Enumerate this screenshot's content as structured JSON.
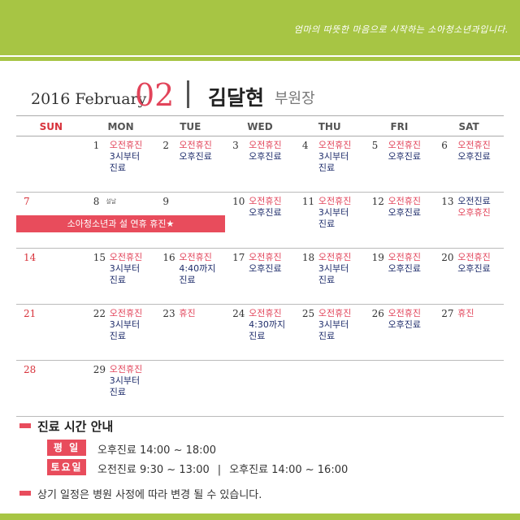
{
  "header": {
    "slogan": "엄마의 따뜻한 마음으로 시작하는 소아청소년과입니다."
  },
  "title": {
    "year_month": "2016 February",
    "month_number": "02",
    "doctor_name": "김달현",
    "doctor_role": "부원장"
  },
  "calendar": {
    "day_names": [
      "SUN",
      "MON",
      "TUE",
      "WED",
      "THU",
      "FRI",
      "SAT"
    ],
    "weeks": [
      [
        {
          "date": "",
          "lines": []
        },
        {
          "date": "1",
          "lines": [
            {
              "text": "오전휴진",
              "color": "red"
            },
            {
              "text": "3시부터",
              "color": "navy"
            },
            {
              "text": "진료",
              "color": "navy"
            }
          ]
        },
        {
          "date": "2",
          "lines": [
            {
              "text": "오전휴진",
              "color": "red"
            },
            {
              "text": "오후진료",
              "color": "navy"
            }
          ]
        },
        {
          "date": "3",
          "lines": [
            {
              "text": "오전휴진",
              "color": "red"
            },
            {
              "text": "오후진료",
              "color": "navy"
            }
          ]
        },
        {
          "date": "4",
          "lines": [
            {
              "text": "오전휴진",
              "color": "red"
            },
            {
              "text": "3시부터",
              "color": "navy"
            },
            {
              "text": "진료",
              "color": "navy"
            }
          ]
        },
        {
          "date": "5",
          "lines": [
            {
              "text": "오전휴진",
              "color": "red"
            },
            {
              "text": "오후진료",
              "color": "navy"
            }
          ]
        },
        {
          "date": "6",
          "lines": [
            {
              "text": "오전휴진",
              "color": "red"
            },
            {
              "text": "오후진료",
              "color": "navy"
            }
          ]
        }
      ],
      [
        {
          "date": "7",
          "lines": []
        },
        {
          "date": "8",
          "holiday": "설날",
          "lines": []
        },
        {
          "date": "9",
          "lines": []
        },
        {
          "date": "10",
          "lines": [
            {
              "text": "오전휴진",
              "color": "red"
            },
            {
              "text": "오후진료",
              "color": "navy"
            }
          ]
        },
        {
          "date": "11",
          "lines": [
            {
              "text": "오전휴진",
              "color": "red"
            },
            {
              "text": "3시부터",
              "color": "navy"
            },
            {
              "text": "진료",
              "color": "navy"
            }
          ]
        },
        {
          "date": "12",
          "lines": [
            {
              "text": "오전휴진",
              "color": "red"
            },
            {
              "text": "오후진료",
              "color": "navy"
            }
          ]
        },
        {
          "date": "13",
          "lines": [
            {
              "text": "오전진료",
              "color": "navy"
            },
            {
              "text": "오후휴진",
              "color": "red"
            }
          ]
        }
      ],
      [
        {
          "date": "14",
          "lines": []
        },
        {
          "date": "15",
          "lines": [
            {
              "text": "오전휴진",
              "color": "red"
            },
            {
              "text": "3시부터",
              "color": "navy"
            },
            {
              "text": "진료",
              "color": "navy"
            }
          ]
        },
        {
          "date": "16",
          "lines": [
            {
              "text": "오전휴진",
              "color": "red"
            },
            {
              "text": "4:40까지",
              "color": "navy"
            },
            {
              "text": "진료",
              "color": "navy"
            }
          ]
        },
        {
          "date": "17",
          "lines": [
            {
              "text": "오전휴진",
              "color": "red"
            },
            {
              "text": "오후진료",
              "color": "navy"
            }
          ]
        },
        {
          "date": "18",
          "lines": [
            {
              "text": "오전휴진",
              "color": "red"
            },
            {
              "text": "3시부터",
              "color": "navy"
            },
            {
              "text": "진료",
              "color": "navy"
            }
          ]
        },
        {
          "date": "19",
          "lines": [
            {
              "text": "오전휴진",
              "color": "red"
            },
            {
              "text": "오후진료",
              "color": "navy"
            }
          ]
        },
        {
          "date": "20",
          "lines": [
            {
              "text": "오전휴진",
              "color": "red"
            },
            {
              "text": "오후진료",
              "color": "navy"
            }
          ]
        }
      ],
      [
        {
          "date": "21",
          "lines": []
        },
        {
          "date": "22",
          "lines": [
            {
              "text": "오전휴진",
              "color": "red"
            },
            {
              "text": "3시부터",
              "color": "navy"
            },
            {
              "text": "진료",
              "color": "navy"
            }
          ]
        },
        {
          "date": "23",
          "lines": [
            {
              "text": "휴진",
              "color": "red"
            }
          ]
        },
        {
          "date": "24",
          "lines": [
            {
              "text": "오전휴진",
              "color": "red"
            },
            {
              "text": "4:30까지",
              "color": "navy"
            },
            {
              "text": "진료",
              "color": "navy"
            }
          ]
        },
        {
          "date": "25",
          "lines": [
            {
              "text": "오전휴진",
              "color": "red"
            },
            {
              "text": "3시부터",
              "color": "navy"
            },
            {
              "text": "진료",
              "color": "navy"
            }
          ]
        },
        {
          "date": "26",
          "lines": [
            {
              "text": "오전휴진",
              "color": "red"
            },
            {
              "text": "오후진료",
              "color": "navy"
            }
          ]
        },
        {
          "date": "27",
          "lines": [
            {
              "text": "휴진",
              "color": "red"
            }
          ]
        }
      ],
      [
        {
          "date": "28",
          "lines": []
        },
        {
          "date": "29",
          "lines": [
            {
              "text": "오전휴진",
              "color": "red"
            },
            {
              "text": "3시부터",
              "color": "navy"
            },
            {
              "text": "진료",
              "color": "navy"
            }
          ]
        }
      ]
    ],
    "banner": "소아청소년과 설 연휴 휴진★"
  },
  "info": {
    "title": "진료 시간 안내",
    "weekday_label": "평 일",
    "weekday_hours": "오후진료 14:00 ~ 18:00",
    "saturday_label": "토요일",
    "saturday_morning": "오전진료 9:30 ~ 13:00",
    "saturday_sep": "|",
    "saturday_afternoon": "오후진료 14:00 ~ 16:00",
    "footnote": "상기 일정은 병원 사정에 따라 변경 될 수 있습니다."
  },
  "colors": {
    "accent_green": "#a7c544",
    "accent_red": "#e84c5c",
    "navy_text": "#1f2d6b"
  }
}
